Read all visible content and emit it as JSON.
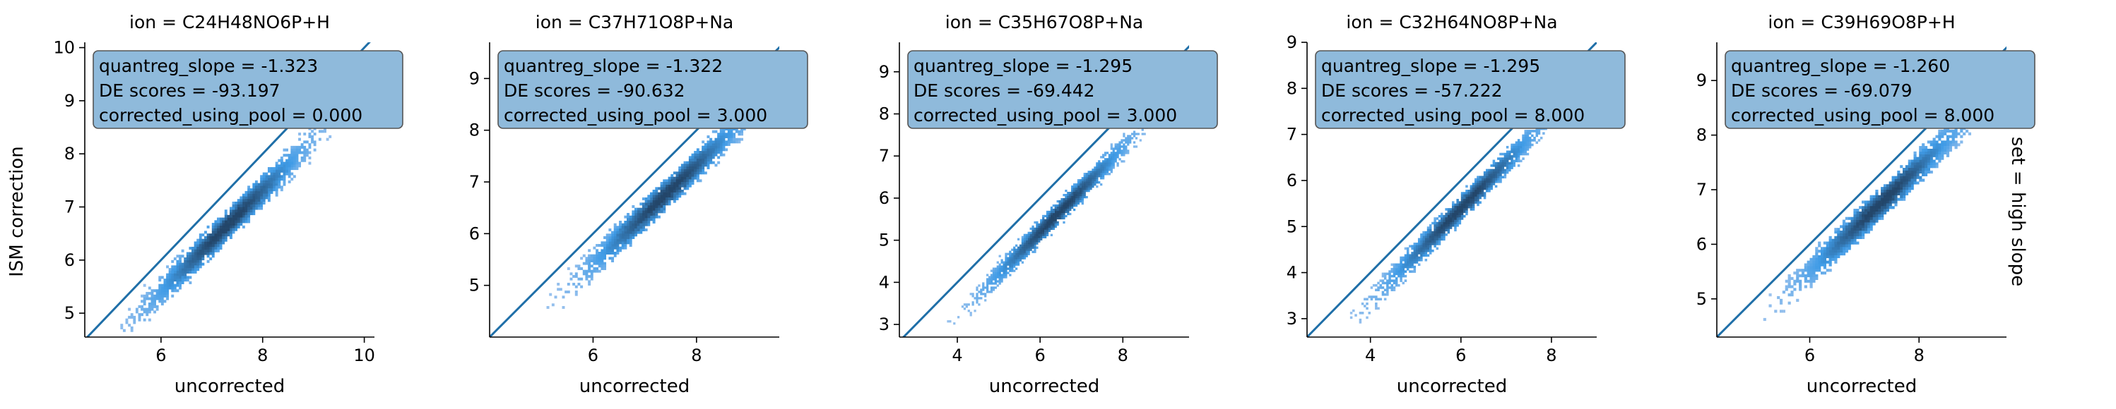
{
  "figure": {
    "ylabel": "ISM correction",
    "row_label": "set = high slope",
    "colors": {
      "diagonal": "#1f6fa8",
      "box_fill": "#8fbadb",
      "box_edge": "#555555",
      "hist_light": "#a8c8ef",
      "hist_mid": "#3f9be6",
      "hist_dark": "#23466a",
      "axis": "#000000"
    }
  },
  "chart_data": [
    {
      "type": "heatmap",
      "title": "ion = C24H48NO6P+H",
      "xlabel": "uncorrected",
      "ylabel": "ISM correction",
      "xlim": [
        4.5,
        10.2
      ],
      "ylim": [
        4.55,
        10.1
      ],
      "xticks": [
        6,
        8,
        10
      ],
      "yticks": [
        5,
        6,
        7,
        8,
        9,
        10
      ],
      "annotation": [
        "quantreg_slope = -1.323",
        "DE scores = -93.197",
        "corrected_using_pool = 0.000"
      ],
      "density": {
        "x_range": [
          5.2,
          9.8
        ],
        "center": [
          7.3,
          6.65
        ],
        "slope": 0.95
      },
      "diagonal": true,
      "grid": false
    },
    {
      "type": "heatmap",
      "title": "ion = C37H71O8P+Na",
      "xlabel": "uncorrected",
      "ylabel": "",
      "xlim": [
        4.0,
        9.6
      ],
      "ylim": [
        4.0,
        9.7
      ],
      "xticks": [
        6,
        8
      ],
      "yticks": [
        5,
        6,
        7,
        8,
        9
      ],
      "annotation": [
        "quantreg_slope = -1.322",
        "DE scores = -90.632",
        "corrected_using_pool = 3.000"
      ],
      "density": {
        "x_range": [
          4.8,
          9.4
        ],
        "center": [
          7.4,
          6.75
        ],
        "slope": 0.95
      },
      "diagonal": true,
      "grid": false
    },
    {
      "type": "heatmap",
      "title": "ion = C35H67O8P+Na",
      "xlabel": "uncorrected",
      "ylabel": "",
      "xlim": [
        2.6,
        9.6
      ],
      "ylim": [
        2.7,
        9.7
      ],
      "xticks": [
        4,
        6,
        8
      ],
      "yticks": [
        3,
        4,
        5,
        6,
        7,
        8,
        9
      ],
      "annotation": [
        "quantreg_slope = -1.295",
        "DE scores = -69.442",
        "corrected_using_pool = 3.000"
      ],
      "density": {
        "x_range": [
          3.3,
          8.6
        ],
        "center": [
          6.4,
          5.6
        ],
        "slope": 1.0
      },
      "diagonal": true,
      "grid": false
    },
    {
      "type": "heatmap",
      "title": "ion = C32H64NO8P+Na",
      "xlabel": "uncorrected",
      "ylabel": "",
      "xlim": [
        2.6,
        9.0
      ],
      "ylim": [
        2.6,
        9.0
      ],
      "xticks": [
        4,
        6,
        8
      ],
      "yticks": [
        3,
        4,
        5,
        6,
        7,
        8,
        9
      ],
      "annotation": [
        "quantreg_slope = -1.295",
        "DE scores = -57.222",
        "corrected_using_pool = 8.000"
      ],
      "density": {
        "x_range": [
          3.2,
          8.4
        ],
        "center": [
          6.0,
          5.4
        ],
        "slope": 1.0
      },
      "diagonal": true,
      "grid": false
    },
    {
      "type": "heatmap",
      "title": "ion = C39H69O8P+H",
      "xlabel": "uncorrected",
      "ylabel": "",
      "xlim": [
        4.3,
        9.6
      ],
      "ylim": [
        4.3,
        9.7
      ],
      "xticks": [
        6,
        8
      ],
      "yticks": [
        5,
        6,
        7,
        8,
        9
      ],
      "annotation": [
        "quantreg_slope = -1.260",
        "DE scores = -69.079",
        "corrected_using_pool = 8.000"
      ],
      "density": {
        "x_range": [
          4.7,
          9.0
        ],
        "center": [
          7.3,
          6.75
        ],
        "slope": 0.95
      },
      "diagonal": true,
      "grid": false
    }
  ]
}
